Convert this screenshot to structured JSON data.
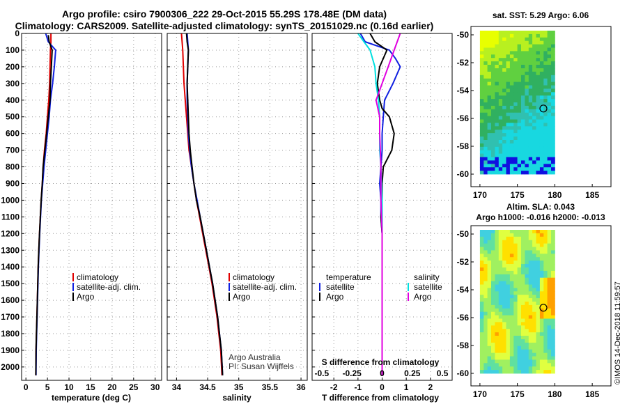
{
  "title": {
    "line1": "Argo profile: csiro 7900306_222 29-Oct-2015 55.29S 178.48E (DM data)",
    "line2": "Climatology: CARS2009. Satellite-adjusted climatology: synTS_20151029.nc (0.16d earlier)"
  },
  "stamp": "©IMOS 14-Dec-2018 11:59:57",
  "colors": {
    "climatology": "#e00000",
    "satellite": "#1020e0",
    "argo": "#000000",
    "sat_salinity": "#00e0e0",
    "argo_salinity": "#e000e0"
  },
  "chart_data": [
    {
      "type": "line",
      "name": "temperature",
      "xlabel": "temperature (deg C)",
      "ylabel": "",
      "xlim": [
        -1,
        31.5
      ],
      "ylim": [
        2080,
        0
      ],
      "xticks": [
        "0",
        "5",
        "10",
        "15",
        "20",
        "25",
        "30"
      ],
      "yticks": [
        "0",
        "100",
        "200",
        "300",
        "400",
        "500",
        "600",
        "700",
        "800",
        "900",
        "1000",
        "1100",
        "1200",
        "1300",
        "1400",
        "1500",
        "1600",
        "1700",
        "1800",
        "1900",
        "2000"
      ],
      "grid": true,
      "legend": {
        "position": "lower-right",
        "entries": [
          "climatology",
          "satellite-adj. clim.",
          "Argo"
        ]
      },
      "series": [
        {
          "name": "climatology",
          "color": "#e00000",
          "x": [
            5.8,
            5.8,
            5.7,
            5.6,
            5.5,
            5.3,
            5.0,
            4.7,
            4.3,
            4.0,
            3.8,
            3.55,
            3.35,
            3.15,
            3.0,
            2.85,
            2.75,
            2.65,
            2.55,
            2.45,
            2.35,
            2.3
          ],
          "y": [
            0,
            50,
            100,
            200,
            300,
            400,
            500,
            600,
            700,
            800,
            900,
            1000,
            1100,
            1200,
            1300,
            1400,
            1500,
            1600,
            1700,
            1800,
            1900,
            2050
          ]
        },
        {
          "name": "satellite-adj. clim.",
          "color": "#1020e0",
          "x": [
            4.6,
            5.2,
            6.9,
            6.6,
            6.2,
            5.7,
            5.4,
            5.0,
            4.6,
            4.2,
            3.9,
            3.6,
            3.4,
            3.2,
            3.05,
            2.9,
            2.8,
            2.7,
            2.6,
            2.5,
            2.4,
            2.35
          ],
          "y": [
            0,
            50,
            100,
            200,
            300,
            400,
            500,
            600,
            700,
            800,
            900,
            1000,
            1100,
            1200,
            1300,
            1400,
            1500,
            1600,
            1700,
            1800,
            1900,
            2050
          ]
        },
        {
          "name": "Argo",
          "color": "#000000",
          "x": [
            5.2,
            5.4,
            6.1,
            5.9,
            5.7,
            5.6,
            5.2,
            4.8,
            4.4,
            4.0,
            3.8,
            3.55,
            3.35,
            3.15,
            3.0,
            2.85,
            2.75,
            2.65,
            2.55,
            2.45,
            2.35,
            2.3
          ],
          "y": [
            10,
            50,
            100,
            200,
            300,
            400,
            500,
            600,
            700,
            800,
            900,
            1000,
            1100,
            1200,
            1300,
            1400,
            1500,
            1600,
            1700,
            1800,
            1900,
            2050
          ]
        }
      ]
    },
    {
      "type": "line",
      "name": "salinity",
      "xlabel": "salinity",
      "ylabel": "",
      "xlim": [
        33.85,
        36.1
      ],
      "ylim": [
        2080,
        0
      ],
      "xticks": [
        "34",
        "34.5",
        "35",
        "35.5",
        "36"
      ],
      "grid": true,
      "legend": {
        "position": "lower-right",
        "entries": [
          "climatology",
          "satellite-adj. clim.",
          "Argo"
        ]
      },
      "annotations": [
        "Argo Australia",
        "PI: Susan Wijffels"
      ],
      "series": [
        {
          "name": "climatology",
          "color": "#e00000",
          "x": [
            34.08,
            34.09,
            34.1,
            34.11,
            34.12,
            34.14,
            34.16,
            34.18,
            34.2,
            34.24,
            34.28,
            34.32,
            34.37,
            34.42,
            34.47,
            34.52,
            34.57,
            34.61,
            34.65,
            34.68,
            34.71,
            34.73
          ],
          "y": [
            0,
            50,
            100,
            200,
            300,
            400,
            500,
            600,
            700,
            800,
            900,
            1000,
            1100,
            1200,
            1300,
            1400,
            1500,
            1600,
            1700,
            1800,
            1900,
            2050
          ]
        },
        {
          "name": "satellite-adj. clim.",
          "color": "#1020e0",
          "x": [
            34.17,
            34.18,
            34.19,
            34.18,
            34.17,
            34.17,
            34.18,
            34.19,
            34.21,
            34.24,
            34.28,
            34.33,
            34.38,
            34.43,
            34.48,
            34.53,
            34.58,
            34.62,
            34.66,
            34.69,
            34.72,
            34.74
          ],
          "y": [
            0,
            50,
            100,
            200,
            300,
            400,
            500,
            600,
            700,
            800,
            900,
            1000,
            1100,
            1200,
            1300,
            1400,
            1500,
            1600,
            1700,
            1800,
            1900,
            2050
          ]
        },
        {
          "name": "Argo",
          "color": "#000000",
          "x": [
            34.16,
            34.17,
            34.19,
            34.18,
            34.17,
            34.18,
            34.19,
            34.2,
            34.22,
            34.25,
            34.28,
            34.32,
            34.38,
            34.43,
            34.48,
            34.53,
            34.58,
            34.62,
            34.66,
            34.69,
            34.72,
            34.74
          ],
          "y": [
            0,
            50,
            100,
            200,
            300,
            400,
            500,
            600,
            700,
            800,
            900,
            1000,
            1100,
            1200,
            1300,
            1400,
            1500,
            1600,
            1700,
            1800,
            1900,
            2050
          ]
        }
      ]
    },
    {
      "type": "line",
      "name": "differences",
      "xlabel": "T difference from climatology",
      "xlabel2": "S difference from climatology",
      "ylabel": "",
      "xlim": [
        -2.9,
        2.9
      ],
      "ylim": [
        2080,
        0
      ],
      "xticks": [
        "-2",
        "-1",
        "0",
        "1",
        "2"
      ],
      "xticks_salinity": [
        "-0.5",
        "-0.25",
        "0",
        "0.25",
        "0.5"
      ],
      "grid": true,
      "legend": {
        "position": "lower",
        "temperature_heading": "temperature",
        "salinity_heading": "salinity",
        "entries": [
          "satellite",
          "Argo",
          "satellite",
          "Argo"
        ]
      },
      "series": [
        {
          "name": "satellite",
          "group": "temperature",
          "color": "#1020e0",
          "x": [
            -0.9,
            -0.7,
            0.3,
            0.55,
            0.75,
            0.45,
            0.1,
            0.05,
            0.0,
            0.0,
            -0.05,
            -0.1,
            -0.05,
            -0.05,
            0.0,
            0.0,
            0.0,
            0.0,
            0.0,
            0.0,
            0.0
          ],
          "y": [
            0,
            50,
            100,
            150,
            200,
            300,
            400,
            500,
            600,
            700,
            800,
            900,
            1000,
            1100,
            1200,
            1400,
            1600,
            1800,
            1900,
            2000,
            2050
          ]
        },
        {
          "name": "Argo",
          "group": "temperature",
          "color": "#000000",
          "x": [
            -0.5,
            -0.3,
            0.2,
            -0.1,
            -0.2,
            -0.1,
            0.0,
            0.3,
            0.5,
            0.4,
            0.05,
            0.0,
            0.0,
            -0.05,
            0.0,
            0.0,
            0.0,
            0.0,
            0.0
          ],
          "y": [
            0,
            50,
            100,
            200,
            300,
            400,
            450,
            500,
            600,
            700,
            800,
            900,
            1000,
            1100,
            1200,
            1400,
            1600,
            1800,
            2050
          ]
        },
        {
          "name": "satellite",
          "group": "salinity",
          "color": "#00e0e0",
          "x": [
            -0.2,
            -0.15,
            -0.1,
            -0.06,
            -0.05,
            -0.03,
            -0.02,
            -0.02,
            -0.02,
            -0.01,
            0.0,
            0.0,
            0.0,
            0.0,
            0.0
          ],
          "y": [
            0,
            50,
            100,
            200,
            300,
            400,
            500,
            600,
            700,
            800,
            1000,
            1200,
            1600,
            1900,
            2050
          ]
        },
        {
          "name": "Argo",
          "group": "salinity",
          "color": "#e000e0",
          "x": [
            0.15,
            0.1,
            0.05,
            0.0,
            -0.05,
            -0.02,
            -0.02,
            -0.01,
            -0.01,
            0.0,
            0.0,
            0.0
          ],
          "y": [
            0,
            100,
            200,
            300,
            400,
            500,
            600,
            800,
            1000,
            1200,
            1600,
            2050
          ]
        }
      ]
    },
    {
      "type": "heatmap",
      "name": "sst-map",
      "title": "sat. SST: 5.29  Argo: 6.06",
      "xlim": [
        168.8,
        187.5
      ],
      "ylim": [
        -60.9,
        -49.4
      ],
      "xticks": [
        "170",
        "175",
        "180",
        "185"
      ],
      "yticks": [
        "-50",
        "-52",
        "-54",
        "-56",
        "-58",
        "-60"
      ],
      "data_extent": {
        "lon": [
          170,
          180
        ],
        "lat": [
          -60,
          -49.7
        ]
      },
      "marker": {
        "lon": 178.48,
        "lat": -55.29
      }
    },
    {
      "type": "heatmap",
      "name": "sla-map",
      "title": "Altim. SLA: 0.043",
      "subtitle": "Argo h1000: -0.016 h2000: -0.013",
      "xlim": [
        168.8,
        187.5
      ],
      "ylim": [
        -60.9,
        -49.4
      ],
      "xticks": [
        "170",
        "175",
        "180",
        "185"
      ],
      "yticks": [
        "-50",
        "-52",
        "-54",
        "-56",
        "-58",
        "-60"
      ],
      "data_extent": {
        "lon": [
          170,
          180
        ],
        "lat": [
          -60,
          -49.7
        ]
      },
      "marker": {
        "lon": 178.48,
        "lat": -55.29
      }
    }
  ]
}
